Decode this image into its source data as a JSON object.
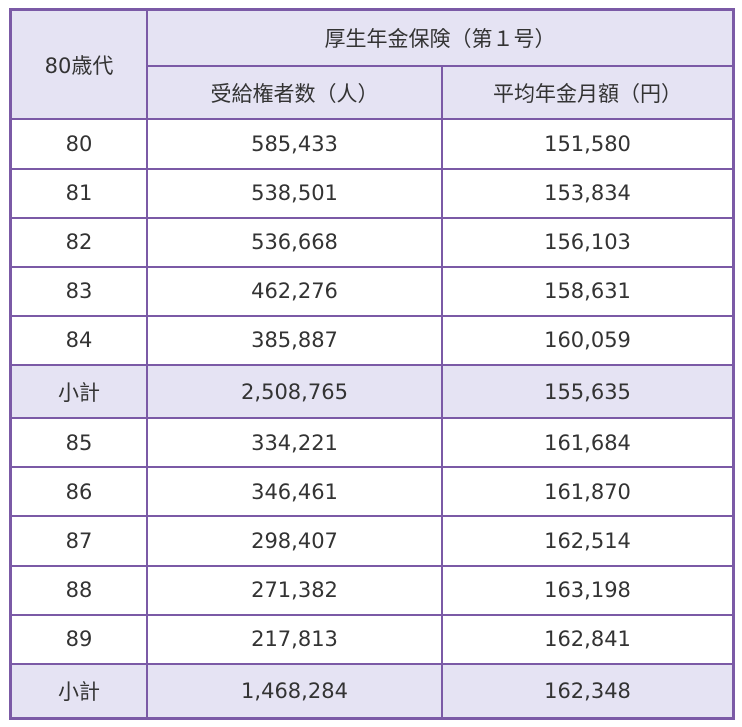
{
  "table": {
    "header": {
      "age_group": "80歳代",
      "group_title": "厚生年金保険（第１号）",
      "col_recipients": "受給権者数（人）",
      "col_avg_monthly": "平均年金月額（円）"
    },
    "rows": [
      {
        "age": "80",
        "recipients": "585,433",
        "avg": "151,580"
      },
      {
        "age": "81",
        "recipients": "538,501",
        "avg": "153,834"
      },
      {
        "age": "82",
        "recipients": "536,668",
        "avg": "156,103"
      },
      {
        "age": "83",
        "recipients": "462,276",
        "avg": "158,631"
      },
      {
        "age": "84",
        "recipients": "385,887",
        "avg": "160,059"
      },
      {
        "age": "小計",
        "recipients": "2,508,765",
        "avg": "155,635"
      },
      {
        "age": "85",
        "recipients": "334,221",
        "avg": "161,684"
      },
      {
        "age": "86",
        "recipients": "346,461",
        "avg": "161,870"
      },
      {
        "age": "87",
        "recipients": "298,407",
        "avg": "162,514"
      },
      {
        "age": "88",
        "recipients": "271,382",
        "avg": "163,198"
      },
      {
        "age": "89",
        "recipients": "217,813",
        "avg": "162,841"
      },
      {
        "age": "小計",
        "recipients": "1,468,284",
        "avg": "162,348"
      }
    ]
  },
  "colors": {
    "border": "#7b5aa6",
    "header_bg": "#e5e3f3",
    "subtotal_bg": "#e5e3f3"
  }
}
